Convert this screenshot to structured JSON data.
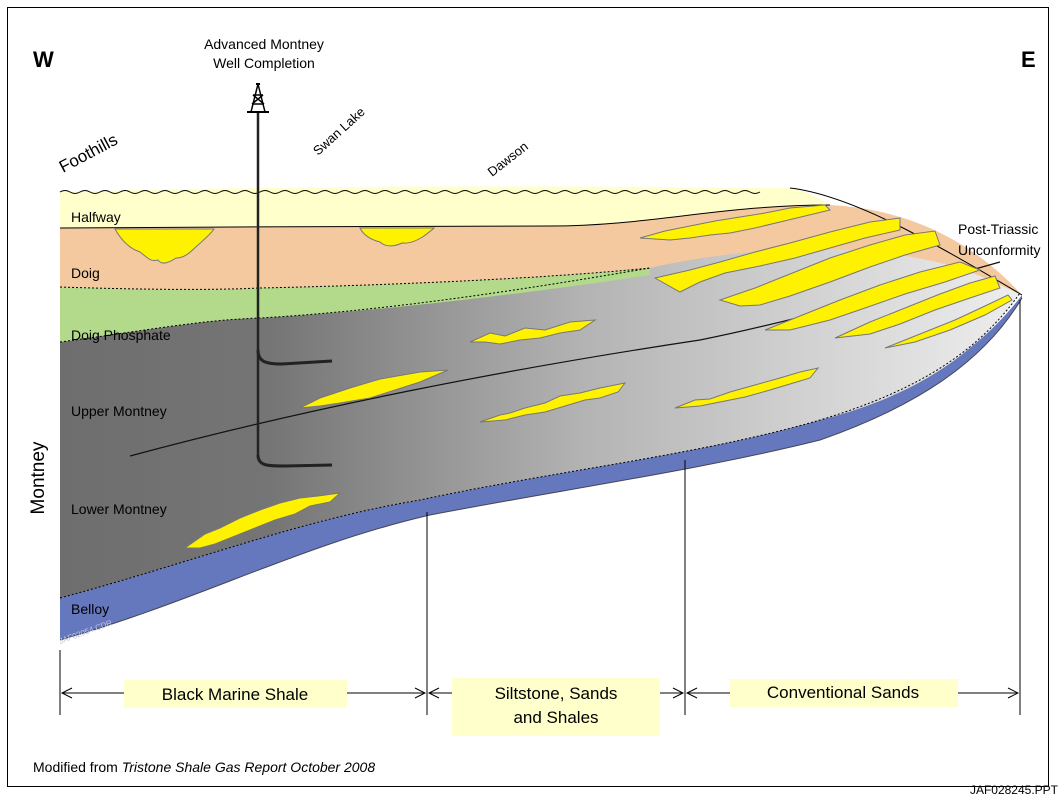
{
  "directions": {
    "west": "W",
    "east": "E"
  },
  "well": {
    "label_line1": "Advanced Montney",
    "label_line2": "Well Completion"
  },
  "locations": [
    "Foothills",
    "Swan Lake",
    "Dawson"
  ],
  "unconformity": {
    "line1": "Post-Triassic",
    "line2": "Unconformity"
  },
  "formations": {
    "halfway": "Halfway",
    "doig": "Doig",
    "doig_phosphate": "Doig Phosphate",
    "upper_montney": "Upper Montney",
    "lower_montney": "Lower Montney",
    "belloy": "Belloy"
  },
  "group_label": "Montney",
  "watermark": "JAF02054.CDR",
  "facies": {
    "black_marine_shale": "Black Marine Shale",
    "siltstone_line1": "Siltstone, Sands",
    "siltstone_line2": "and Shales",
    "conventional_sands": "Conventional Sands"
  },
  "credit": {
    "prefix": "Modified from ",
    "source": "Tristone Shale Gas Report October 2008"
  },
  "figure_id": "JAF028245.PPT",
  "colors": {
    "halfway": "#FFFFCC",
    "doig": "#F4C9A0",
    "doig_phosphate": "#B3D98A",
    "montney_dark": "#6E6E6E",
    "montney_light": "#ECECEC",
    "belloy": "#6577BD",
    "sand": "#FFF200",
    "facies_box": "#FFFFCC"
  }
}
